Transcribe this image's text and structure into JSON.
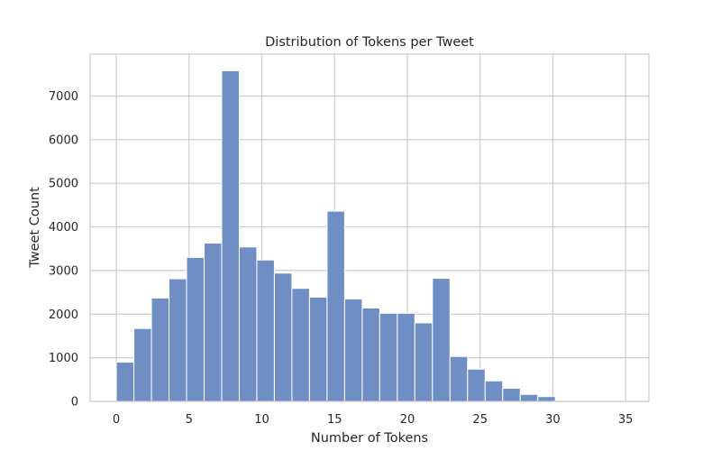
{
  "chart_data": {
    "type": "bar",
    "title": "Distribution of Tokens per Tweet",
    "xlabel": "Number of Tokens",
    "ylabel": "Tweet Count",
    "bin_width": 1.2069,
    "bins": [
      {
        "x0": 0.0,
        "count": 900
      },
      {
        "x0": 1.207,
        "count": 1670
      },
      {
        "x0": 2.414,
        "count": 2370
      },
      {
        "x0": 3.621,
        "count": 2810
      },
      {
        "x0": 4.828,
        "count": 3300
      },
      {
        "x0": 6.034,
        "count": 3630
      },
      {
        "x0": 7.241,
        "count": 7580
      },
      {
        "x0": 8.448,
        "count": 3540
      },
      {
        "x0": 9.655,
        "count": 3240
      },
      {
        "x0": 10.862,
        "count": 2940
      },
      {
        "x0": 12.069,
        "count": 2590
      },
      {
        "x0": 13.276,
        "count": 2390
      },
      {
        "x0": 14.483,
        "count": 4360
      },
      {
        "x0": 15.69,
        "count": 2350
      },
      {
        "x0": 16.897,
        "count": 2140
      },
      {
        "x0": 18.103,
        "count": 2020
      },
      {
        "x0": 19.31,
        "count": 2020
      },
      {
        "x0": 20.517,
        "count": 1800
      },
      {
        "x0": 21.724,
        "count": 2820
      },
      {
        "x0": 22.931,
        "count": 1030
      },
      {
        "x0": 24.138,
        "count": 740
      },
      {
        "x0": 25.345,
        "count": 470
      },
      {
        "x0": 26.552,
        "count": 300
      },
      {
        "x0": 27.759,
        "count": 160
      },
      {
        "x0": 28.966,
        "count": 110
      },
      {
        "x0": 30.172,
        "count": 20
      },
      {
        "x0": 31.379,
        "count": 10
      },
      {
        "x0": 32.586,
        "count": 5
      },
      {
        "x0": 33.793,
        "count": 5
      }
    ],
    "xlim": [
      -1.8,
      36.6
    ],
    "ylim": [
      0,
      7960
    ],
    "xticks": [
      0,
      5,
      10,
      15,
      20,
      25,
      30,
      35
    ],
    "yticks": [
      0,
      1000,
      2000,
      3000,
      4000,
      5000,
      6000,
      7000
    ],
    "grid": true,
    "bar_color": "#6f8fc4",
    "bar_edge_color": "#ffffff",
    "grid_color": "#cccccc"
  }
}
